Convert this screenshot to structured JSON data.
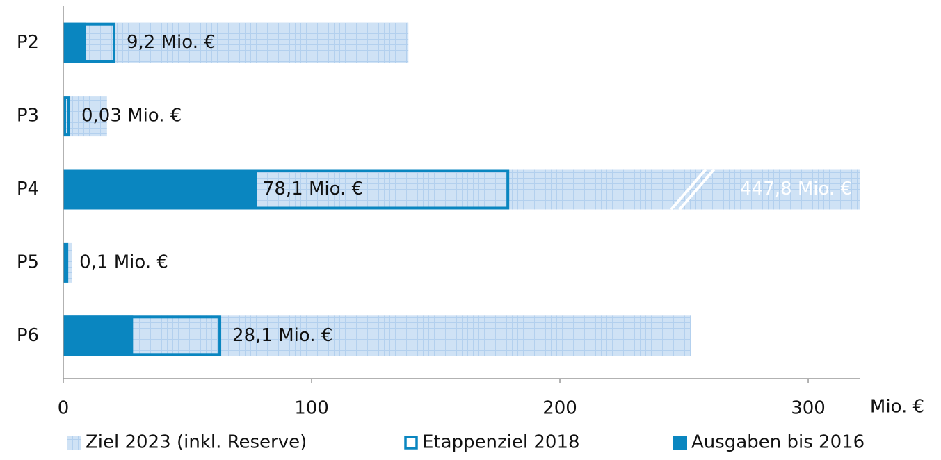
{
  "chart_data": {
    "type": "bar",
    "orientation": "horizontal",
    "categories": [
      "P2",
      "P3",
      "P4",
      "P5",
      "P6"
    ],
    "x_axis_label": "Mio. €",
    "series": [
      {
        "name": "Ziel 2023 (inkl. Reserve)",
        "color": "#cfe2f5",
        "style": "hatched",
        "values": [
          139,
          17.6,
          447.8,
          3.6,
          252.7
        ],
        "value_labels": [
          null,
          null,
          "447,8 Mio. €",
          null,
          null
        ]
      },
      {
        "name": "Etappenziel 2018",
        "color": "#0a86c0",
        "style": "outline",
        "values": [
          21,
          2.8,
          179.6,
          2,
          63.6
        ]
      },
      {
        "name": "Ausgaben bis 2016",
        "color": "#0a86c0",
        "style": "solid",
        "values": [
          9.2,
          0.03,
          78.1,
          0.1,
          28.1
        ],
        "value_labels": [
          "9,2 Mio. €",
          "0,03 Mio. €",
          "78,1 Mio. €",
          "0,1 Mio. €",
          "28,1 Mio. €"
        ]
      }
    ],
    "xlim": [
      0,
      321
    ],
    "xticks": [
      0,
      100,
      200,
      300
    ],
    "legend": "bottom"
  }
}
